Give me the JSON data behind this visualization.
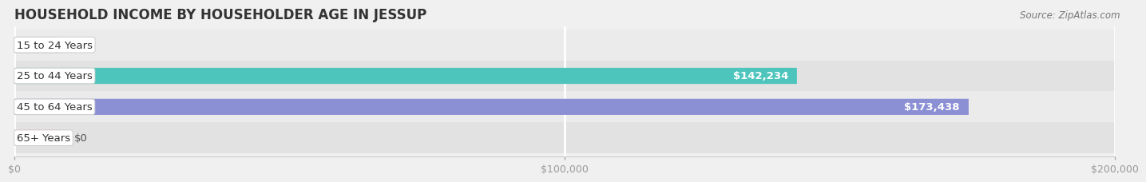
{
  "title": "HOUSEHOLD INCOME BY HOUSEHOLDER AGE IN JESSUP",
  "source": "Source: ZipAtlas.com",
  "categories": [
    "15 to 24 Years",
    "25 to 44 Years",
    "45 to 64 Years",
    "65+ Years"
  ],
  "values": [
    0,
    142234,
    173438,
    0
  ],
  "bar_colors": [
    "#c9a0c8",
    "#4ec5bc",
    "#8b8fd4",
    "#f5a8bf"
  ],
  "xlim": [
    0,
    200000
  ],
  "xticks": [
    0,
    100000,
    200000
  ],
  "xtick_labels": [
    "$0",
    "$100,000",
    "$200,000"
  ],
  "bar_height": 0.52,
  "background_color": "#f0f0f0",
  "title_fontsize": 12,
  "label_fontsize": 9.5,
  "tick_fontsize": 9,
  "source_fontsize": 8.5,
  "row_light": "#ebebeb",
  "row_dark": "#e2e2e2"
}
